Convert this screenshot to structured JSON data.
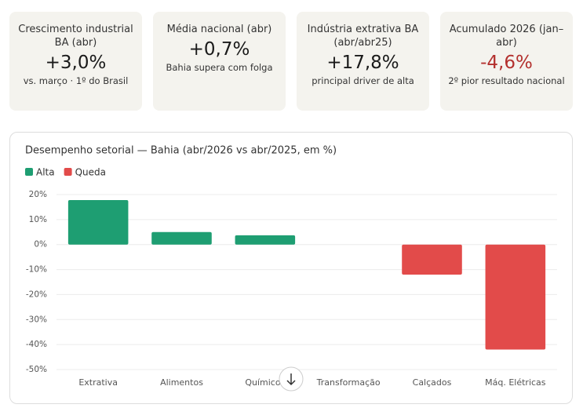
{
  "cards": [
    {
      "title": "Crescimento industrial BA (abr)",
      "value": "+3,0%",
      "note": "vs. março · 1º do Brasil"
    },
    {
      "title": "Média nacional (abr)",
      "value": "+0,7%",
      "note": "Bahia supera com folga"
    },
    {
      "title": "Indústria extrativa BA (abr/abr25)",
      "value": "+17,8%",
      "note": "principal driver de alta"
    },
    {
      "title": "Acumulado 2026 (jan–abr)",
      "value": "-4,6%",
      "note": "2º pior resultado nacional"
    }
  ],
  "chart_data": {
    "type": "bar",
    "title": "Desempenho setorial — Bahia (abr/2026 vs abr/2025, em %)",
    "categories": [
      "Extrativa",
      "Alimentos",
      "Químicos",
      "Transformação",
      "Calçados",
      "Máq. Elétricas"
    ],
    "values": [
      17.8,
      5,
      3.7,
      0,
      -12,
      -42
    ],
    "legend": [
      {
        "name": "Alta",
        "color": "#1e9e72"
      },
      {
        "name": "Queda",
        "color": "#e24b4a"
      }
    ],
    "ylim": [
      -50,
      20
    ],
    "yticks": [
      {
        "value": -50,
        "label": "-50%"
      },
      {
        "value": -40,
        "label": "-40%"
      },
      {
        "value": -30,
        "label": "-30%"
      },
      {
        "value": -20,
        "label": "-20%"
      },
      {
        "value": -10,
        "label": "-10%"
      },
      {
        "value": 0,
        "label": "0%"
      },
      {
        "value": 10,
        "label": "10%"
      },
      {
        "value": 20,
        "label": "20%"
      }
    ],
    "grid": true
  }
}
